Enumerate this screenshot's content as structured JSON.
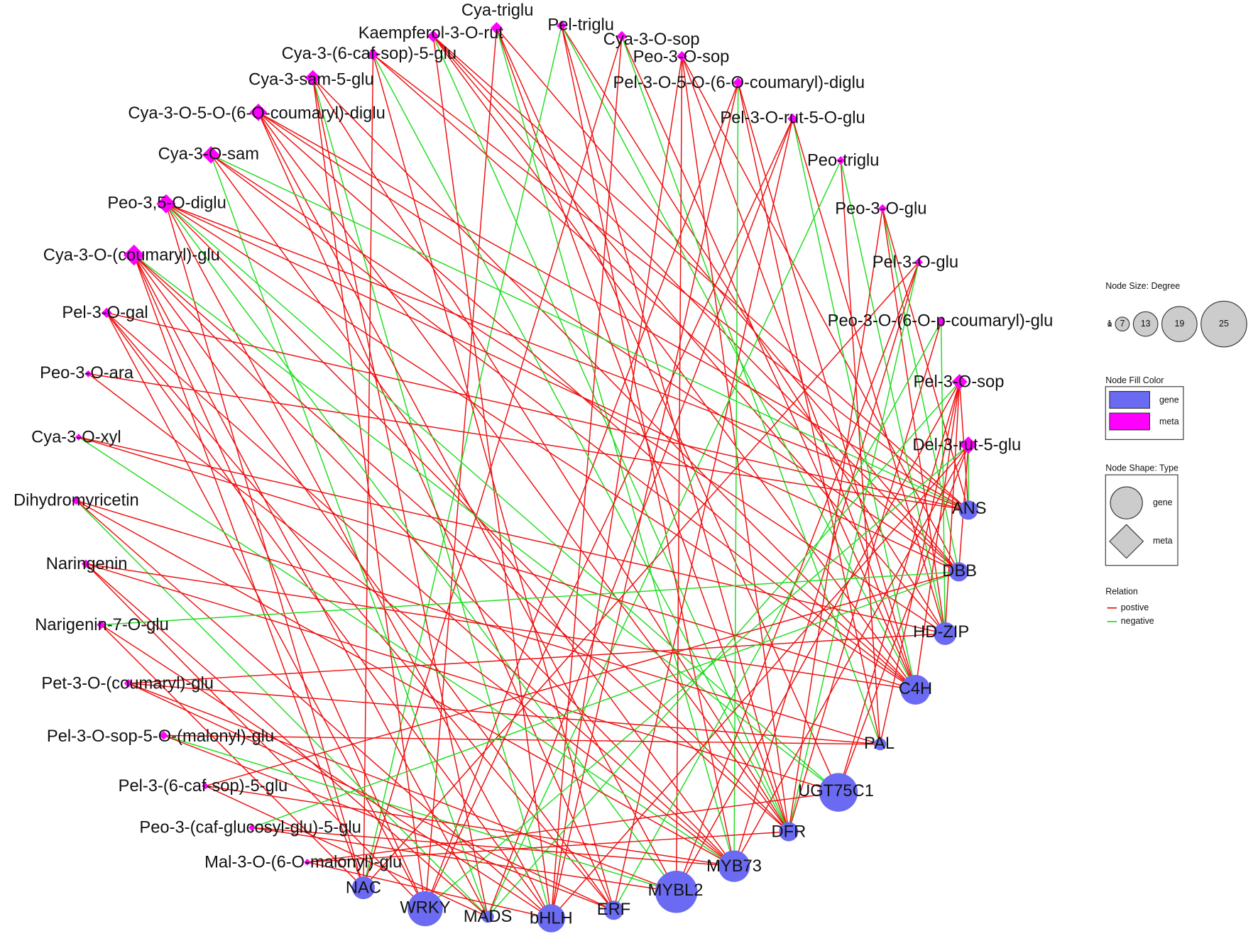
{
  "nodes": [
    {
      "label": "Cya-triglu",
      "type": "meta",
      "degree": 6
    },
    {
      "label": "Kaempferol-3-O-rut",
      "type": "meta",
      "degree": 6
    },
    {
      "label": "Pel-triglu",
      "type": "meta",
      "degree": 5
    },
    {
      "label": "Cya-3-O-sop",
      "type": "meta",
      "degree": 5
    },
    {
      "label": "Peo-3-O-sop",
      "type": "meta",
      "degree": 5
    },
    {
      "label": "Cya-3-(6-caf-sop)-5-glu",
      "type": "meta",
      "degree": 6
    },
    {
      "label": "Cya-3-sam-5-glu",
      "type": "meta",
      "degree": 8
    },
    {
      "label": "Pel-3-O-5-O-(6-O-coumaryl)-diglu",
      "type": "meta",
      "degree": 5
    },
    {
      "label": "Cya-3-O-5-O-(6-O-coumaryl)-diglu",
      "type": "meta",
      "degree": 9
    },
    {
      "label": "Pel-3-O-rut-5-O-glu",
      "type": "meta",
      "degree": 5
    },
    {
      "label": "Cya-3-O-sam",
      "type": "meta",
      "degree": 9
    },
    {
      "label": "Peo-triglu",
      "type": "meta",
      "degree": 4
    },
    {
      "label": "Peo-3,5-O-diglu",
      "type": "meta",
      "degree": 10
    },
    {
      "label": "Peo-3-O-glu",
      "type": "meta",
      "degree": 4
    },
    {
      "label": "Cya-3-O-(coumaryl)-glu",
      "type": "meta",
      "degree": 11
    },
    {
      "label": "Pel-3-O-glu",
      "type": "meta",
      "degree": 4
    },
    {
      "label": "Pel-3-O-gal",
      "type": "meta",
      "degree": 5
    },
    {
      "label": "Peo-3-O-(6-O-p-coumaryl)-glu",
      "type": "meta",
      "degree": 4
    },
    {
      "label": "Peo-3-O-ara",
      "type": "meta",
      "degree": 3
    },
    {
      "label": "Pel-3-O-sop",
      "type": "meta",
      "degree": 8
    },
    {
      "label": "Cya-3-O-xyl",
      "type": "meta",
      "degree": 3
    },
    {
      "label": "Del-3-rut-5-glu",
      "type": "meta",
      "degree": 9
    },
    {
      "label": "Dihydromyricetin",
      "type": "meta",
      "degree": 4
    },
    {
      "label": "Naringenin",
      "type": "meta",
      "degree": 4
    },
    {
      "label": "Narigenin-7-O-glu",
      "type": "meta",
      "degree": 4
    },
    {
      "label": "Pet-3-O-(coumaryl)-glu",
      "type": "meta",
      "degree": 4
    },
    {
      "label": "Pel-3-O-sop-5-O-(malonyl)-glu",
      "type": "meta",
      "degree": 4
    },
    {
      "label": "Pel-3-(6-caf-sop)-5-glu",
      "type": "meta",
      "degree": 3
    },
    {
      "label": "Peo-3-(caf-glucosyl-glu)-5-glu",
      "type": "meta",
      "degree": 3
    },
    {
      "label": "Mal-3-O-(6-O-malonyl)-glu",
      "type": "meta",
      "degree": 3
    },
    {
      "label": "ANS",
      "type": "gene",
      "degree": 10
    },
    {
      "label": "DBB",
      "type": "gene",
      "degree": 10
    },
    {
      "label": "HD-ZIP",
      "type": "gene",
      "degree": 12
    },
    {
      "label": "C4H",
      "type": "gene",
      "degree": 16
    },
    {
      "label": "PAL",
      "type": "gene",
      "degree": 6
    },
    {
      "label": "UGT75C1",
      "type": "gene",
      "degree": 21
    },
    {
      "label": "DFR",
      "type": "gene",
      "degree": 10
    },
    {
      "label": "MYB73",
      "type": "gene",
      "degree": 17
    },
    {
      "label": "MYBL2",
      "type": "gene",
      "degree": 23
    },
    {
      "label": "ERF",
      "type": "gene",
      "degree": 10
    },
    {
      "label": "bHLH",
      "type": "gene",
      "degree": 15
    },
    {
      "label": "MADS",
      "type": "gene",
      "degree": 6
    },
    {
      "label": "WRKY",
      "type": "gene",
      "degree": 19
    },
    {
      "label": "NAC",
      "type": "gene",
      "degree": 12
    }
  ],
  "legend": {
    "size_title": "Node Size:  Degree",
    "sizes": [
      1,
      7,
      13,
      19,
      25
    ],
    "fill_title": "Node Fill Color",
    "fills": [
      {
        "label": "gene",
        "color": "#6a6af2"
      },
      {
        "label": "meta",
        "color": "#ff00ff"
      }
    ],
    "shape_title": "Node Shape:  Type",
    "shapes": [
      "gene",
      "meta"
    ],
    "relation_title": "Relation",
    "relations": [
      {
        "label": "postive",
        "color": "#ee1111"
      },
      {
        "label": "negative",
        "color": "#22dd22"
      }
    ]
  }
}
